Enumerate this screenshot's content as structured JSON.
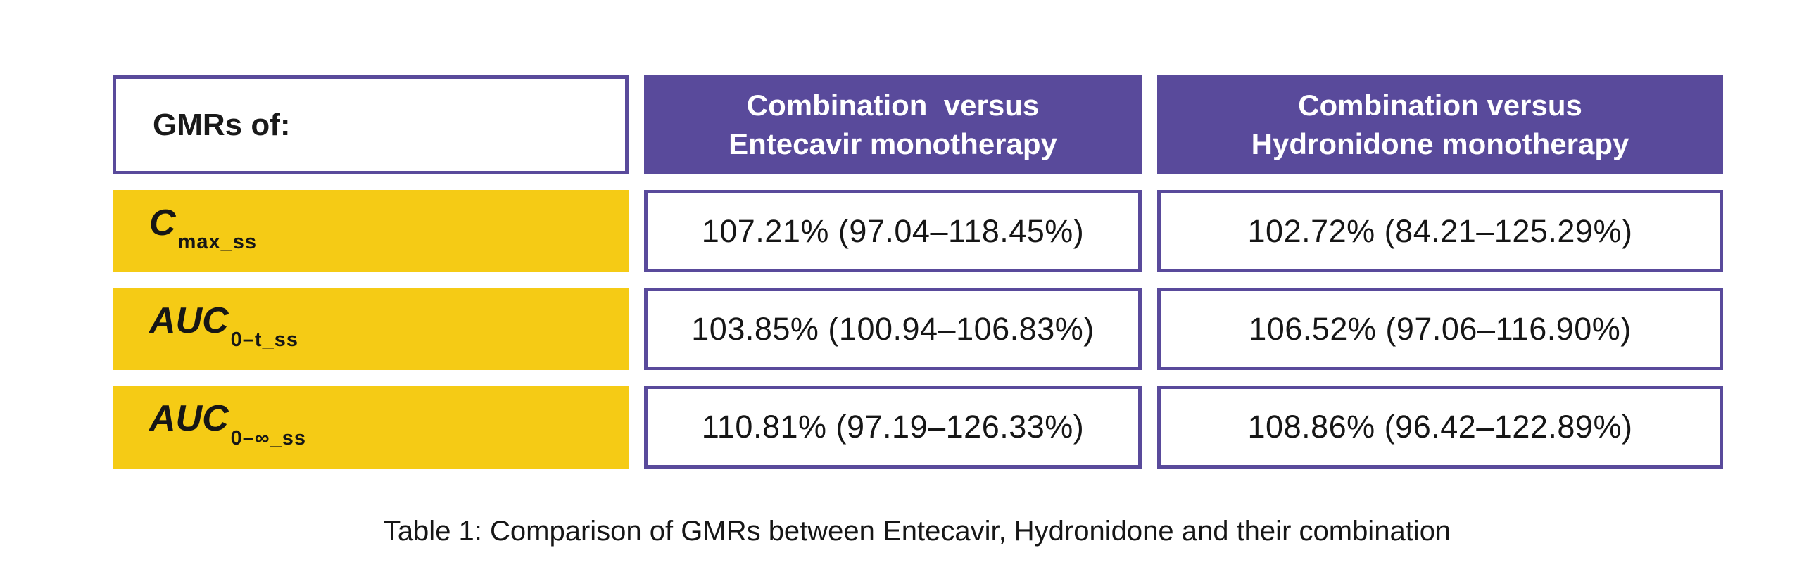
{
  "colors": {
    "purple": "#594A9B",
    "yellow": "#F5CB15",
    "text": "#1a1a1a",
    "header_text": "#ffffff",
    "background": "#ffffff"
  },
  "chart_data": {
    "type": "table",
    "corner_header": "GMRs of:",
    "columns": [
      {
        "line1": "Combination  versus",
        "line2": "Entecavir monotherapy"
      },
      {
        "line1": "Combination versus",
        "line2": "Hydronidone monotherapy"
      }
    ],
    "rows": [
      {
        "parameter": "C_max_ss",
        "base": "C",
        "subscript": "max_ss",
        "combination_vs_entecavir": "107.21% (97.04–118.45%)",
        "combination_vs_hydronidone": "102.72% (84.21–125.29%)"
      },
      {
        "parameter": "AUC_0-t_ss",
        "base": "AUC",
        "subscript": "0–t_ss",
        "combination_vs_entecavir": "103.85% (100.94–106.83%)",
        "combination_vs_hydronidone": "106.52% (97.06–116.90%)"
      },
      {
        "parameter": "AUC_0-inf_ss",
        "base": "AUC",
        "subscript": "0–∞_ss",
        "combination_vs_entecavir": "110.81% (97.19–126.33%)",
        "combination_vs_hydronidone": "108.86% (96.42–122.89%)"
      }
    ],
    "caption": "Table 1: Comparison of GMRs between Entecavir, Hydronidone and their combination"
  }
}
